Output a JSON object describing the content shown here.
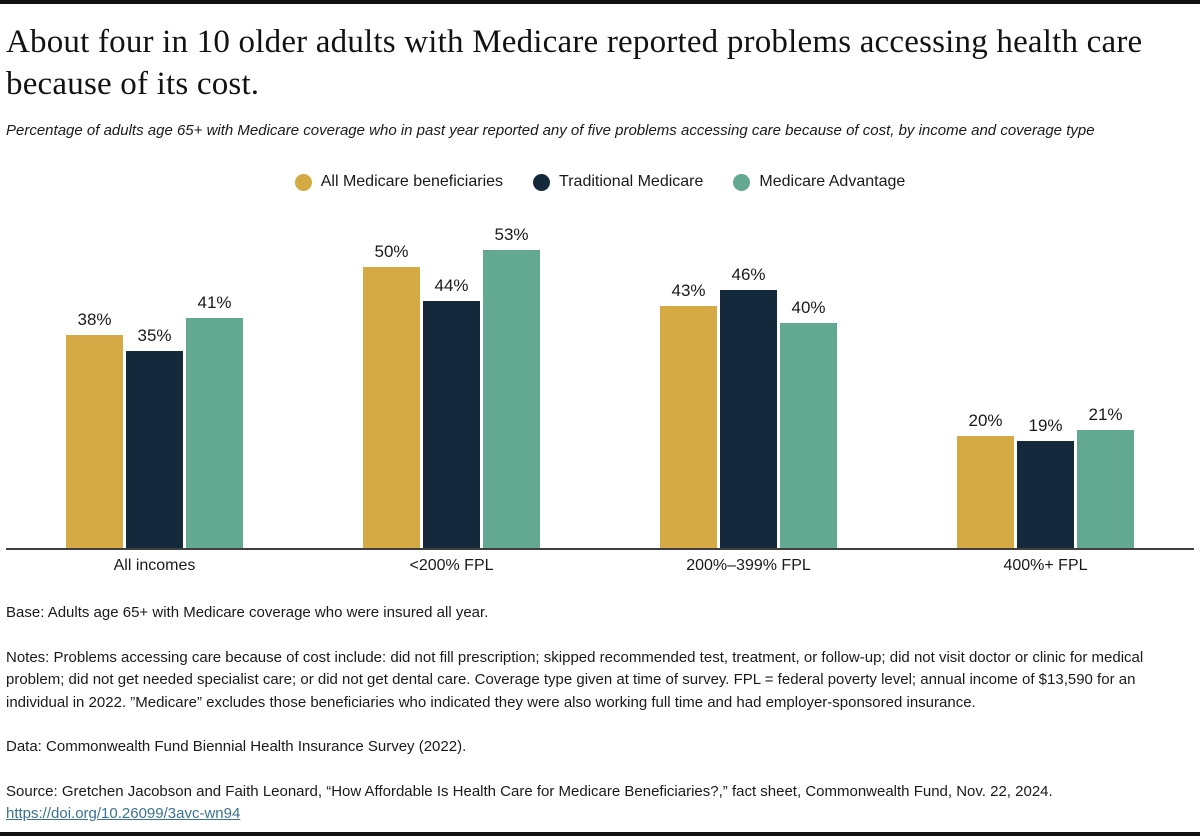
{
  "page": {
    "title": "About four in 10 older adults with Medicare reported problems accessing health care because of its cost.",
    "subtitle": "Percentage of adults age 65+ with Medicare coverage who in past year reported any of five problems accessing care because of cost, by income and coverage type"
  },
  "legend": [
    {
      "label": "All Medicare beneficiaries",
      "color": "#D5A943"
    },
    {
      "label": "Traditional Medicare",
      "color": "#15293D"
    },
    {
      "label": "Medicare Advantage",
      "color": "#63A891"
    }
  ],
  "chart_data": {
    "type": "bar",
    "title": "About four in 10 older adults with Medicare reported problems accessing health care because of its cost.",
    "subtitle": "Percentage of adults age 65+ with Medicare coverage who in past year reported any of five problems accessing care because of cost, by income and coverage type",
    "categories": [
      "All incomes",
      "<200% FPL",
      "200%–399% FPL",
      "400%+ FPL"
    ],
    "series": [
      {
        "name": "All Medicare beneficiaries",
        "color": "#D5A943",
        "values": [
          38,
          50,
          43,
          20
        ]
      },
      {
        "name": "Traditional Medicare",
        "color": "#15293D",
        "values": [
          35,
          44,
          46,
          19
        ]
      },
      {
        "name": "Medicare Advantage",
        "color": "#63A891",
        "values": [
          41,
          53,
          40,
          21
        ]
      }
    ],
    "value_suffix": "%",
    "ylim": [
      0,
      60
    ],
    "grid": false,
    "y_axis_shown": false,
    "legend_position": "top-center",
    "value_labels": "above-bars",
    "xlabel": "",
    "ylabel": ""
  },
  "footnotes": {
    "base": "Base: Adults age 65+ with Medicare coverage who were insured all year.",
    "notes": "Notes: Problems accessing care because of cost include: did not fill prescription; skipped recommended test, treatment, or follow-up; did not visit doctor or clinic for medical problem; did not get needed specialist care; or did not get dental care. Coverage type given at time of survey. FPL = federal poverty level; annual income of $13,590 for an individual in 2022. ”Medicare” excludes those beneficiaries who indicated they were also working full time and had employer-sponsored insurance.",
    "data": "Data: Commonwealth Fund Biennial Health Insurance Survey (2022).",
    "source": "Source: Gretchen Jacobson and Faith Leonard, “How Affordable Is Health Care for Medicare Beneficiaries?,” fact sheet, Commonwealth Fund, Nov. 22, 2024.",
    "link": "https://doi.org/10.26099/3avc-wn94"
  },
  "colors": {
    "accent_gold": "#D5A943",
    "accent_navy": "#15293D",
    "accent_teal": "#63A891",
    "rule_black": "#111111",
    "axis_gray": "#3f3f3f",
    "link_teal_blue": "#3a7390",
    "text": "#1a1a1a"
  }
}
